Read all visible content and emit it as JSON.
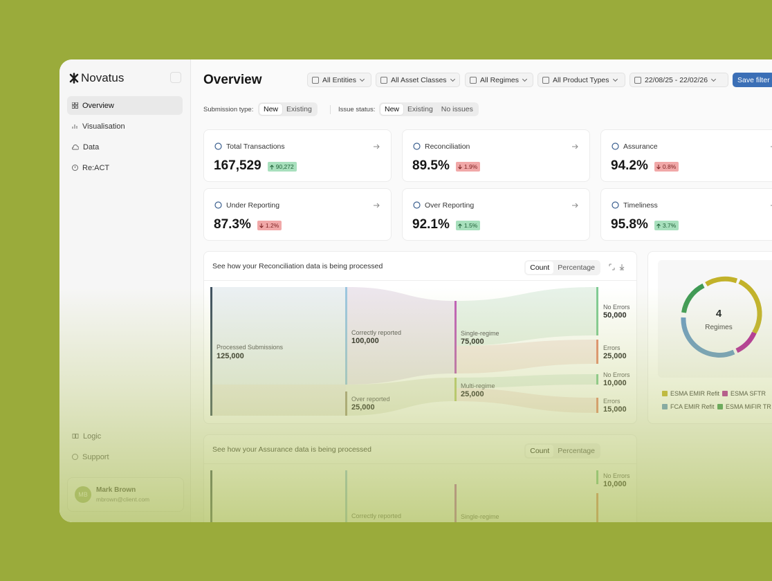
{
  "sidebar": {
    "brand": "Novatus",
    "nav": [
      "Overview",
      "Visualisation",
      "Data",
      "Re:ACT"
    ],
    "footer_nav": [
      "Logic",
      "Support"
    ],
    "user": {
      "initials": "MB",
      "name": "Mark Brown",
      "email": "mbrown@client.com"
    }
  },
  "header": {
    "title": "Overview",
    "filters": [
      "All Entities",
      "All Asset Classes",
      "All Regimes",
      "All Product Types",
      "22/08/25 - 22/02/26"
    ],
    "save": "Save filter"
  },
  "toggles": {
    "submission_label": "Submission type:",
    "submission_options": [
      "New",
      "Existing"
    ],
    "issue_label": "Issue status:",
    "issue_options": [
      "New",
      "Existing",
      "No issues"
    ]
  },
  "kpis": [
    {
      "label": "Total Transactions",
      "value": "167,529",
      "change": "90,272",
      "direction": "up"
    },
    {
      "label": "Reconciliation",
      "value": "89.5%",
      "change": "1.9%",
      "direction": "down"
    },
    {
      "label": "Assurance",
      "value": "94.2%",
      "change": "0.8%",
      "direction": "down"
    },
    {
      "label": "Under Reporting",
      "value": "87.3%",
      "change": "1.2%",
      "direction": "down"
    },
    {
      "label": "Over Reporting",
      "value": "92.1%",
      "change": "1.5%",
      "direction": "up"
    },
    {
      "label": "Timeliness",
      "value": "95.8%",
      "change": "3.7%",
      "direction": "up"
    }
  ],
  "reconciliation_panel": {
    "title": "See how your Reconciliation data is being processed",
    "tabs": [
      "Count",
      "Percentage"
    ],
    "nodes": [
      {
        "label": "Processed Submissions",
        "value": "125,000"
      },
      {
        "label": "Correctly reported",
        "value": "100,000"
      },
      {
        "label": "Over reported",
        "value": "25,000"
      },
      {
        "label": "Single-regime",
        "value": "75,000"
      },
      {
        "label": "Multi-regime",
        "value": "25,000"
      },
      {
        "label": "No Errors",
        "value": "50,000"
      },
      {
        "label": "Errors",
        "value": "25,000"
      },
      {
        "label": "No Errors",
        "value": "10,000"
      },
      {
        "label": "Errors",
        "value": "15,000"
      }
    ]
  },
  "regimes_panel": {
    "count": "4",
    "label": "Regimes",
    "legend": [
      "ESMA EMIR Refit",
      "ESMA SFTR",
      "FCA EMIR Refit",
      "ESMA MiFIR TR"
    ]
  },
  "assurance_panel": {
    "title": "See how your Assurance data is being processed",
    "tabs": [
      "Count",
      "Percentage"
    ],
    "nodes": [
      {
        "label": "No Errors",
        "value": "10,000"
      },
      {
        "label": "Correctly reported"
      },
      {
        "label": "Single-regime"
      }
    ]
  }
}
